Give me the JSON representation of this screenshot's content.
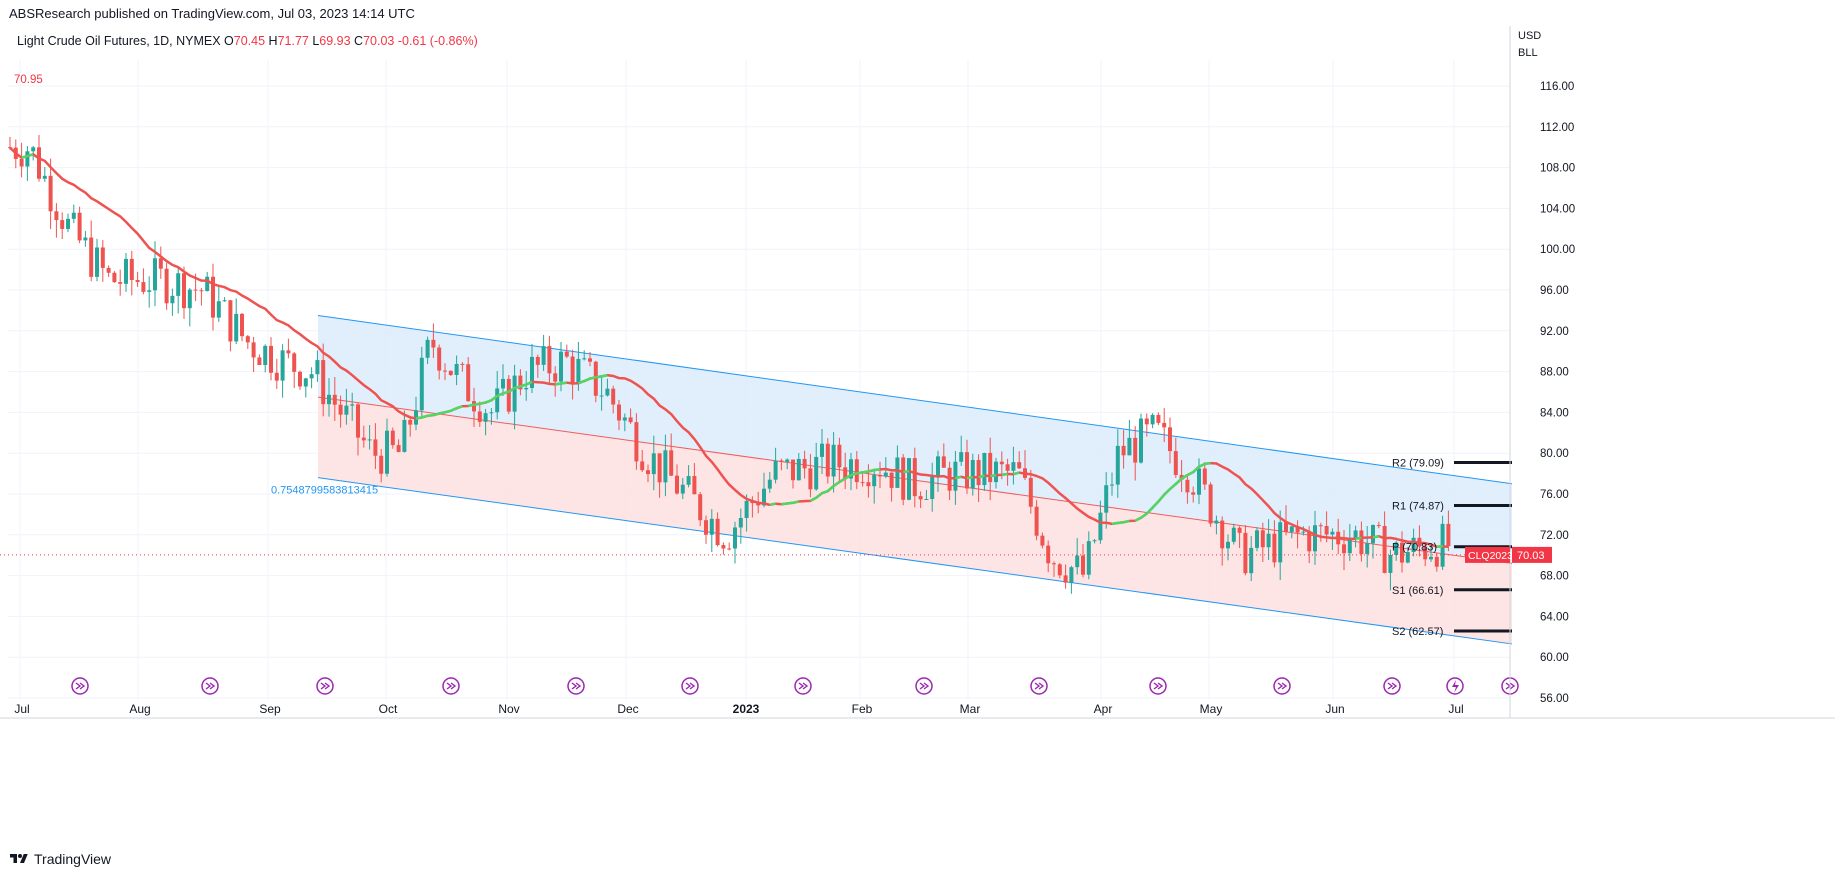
{
  "header": {
    "text": "ABSResearch published on TradingView.com, Jul 03, 2023 14:14 UTC"
  },
  "symbol": {
    "name": "Light Crude Oil Futures, 1D, NYMEX",
    "open_label": "O",
    "open": "70.45",
    "high_label": "H",
    "high": "71.77",
    "low_label": "L",
    "low": "69.93",
    "close_label": "C",
    "close": "70.03",
    "change": "-0.61 (-0.86%)"
  },
  "price_axis": {
    "currency": "USD",
    "unit": "BLL",
    "ticks": [
      "116.00",
      "112.00",
      "108.00",
      "104.00",
      "100.00",
      "96.00",
      "92.00",
      "88.00",
      "84.00",
      "80.00",
      "76.00",
      "72.00",
      "68.00",
      "64.00",
      "60.00",
      "56.00"
    ]
  },
  "time_axis": {
    "labels": [
      "Jul",
      "Aug",
      "Sep",
      "Oct",
      "Nov",
      "Dec",
      "2023",
      "Feb",
      "Mar",
      "Apr",
      "May",
      "Jun",
      "Jul"
    ]
  },
  "last_price_tag": {
    "symbol": "CLQ2023",
    "price": "70.03",
    "color": "#f23645"
  },
  "high_marker": "70.95",
  "channel_label": "0.7548799583813415",
  "pivots": [
    {
      "label": "R2 (79.09)",
      "value": 79.09
    },
    {
      "label": "R1 (74.87)",
      "value": 74.87
    },
    {
      "label": "P (70.83)",
      "value": 70.83
    },
    {
      "label": "S1 (66.61)",
      "value": 66.61
    },
    {
      "label": "S2 (62.57)",
      "value": 62.57
    }
  ],
  "colors": {
    "up": "#26a69a",
    "down": "#ef5350",
    "ma_down": "#ef5350",
    "ma_up": "#4cd964",
    "channel_line": "#2196f3",
    "upper_fill": "#dcecfc",
    "lower_fill": "#fde2e2",
    "event_icon": "#9c27b0"
  },
  "footer": {
    "brand": "TradingView"
  },
  "chart_data": {
    "type": "candlestick",
    "title": "Light Crude Oil Futures, 1D, NYMEX",
    "y_range": [
      55,
      118
    ],
    "series": [
      {
        "name": "CLQ2023",
        "type": "candlestick"
      },
      {
        "type": "line"
      }
    ],
    "close_path": [
      [
        "Jul",
        110
      ],
      [
        "Jul",
        102
      ],
      [
        "Jul",
        97
      ],
      [
        "Aug",
        97
      ],
      [
        "Aug",
        96
      ],
      [
        "Aug",
        91
      ],
      [
        "Sep",
        89
      ],
      [
        "Sep",
        88
      ],
      [
        "Sep",
        84
      ],
      [
        "Sep",
        80
      ],
      [
        "Oct",
        80
      ],
      [
        "Oct",
        91
      ],
      [
        "Oct",
        87
      ],
      [
        "Oct",
        84
      ],
      [
        "Nov",
        88
      ],
      [
        "Nov",
        89
      ],
      [
        "Nov",
        86
      ],
      [
        "Dec",
        80
      ],
      [
        "Dec",
        76
      ],
      [
        "Dec",
        72
      ],
      [
        "2023",
        78
      ],
      [
        "2023",
        79
      ],
      [
        "Feb",
        79
      ],
      [
        "Feb",
        77
      ],
      [
        "Feb",
        78
      ],
      [
        "Mar",
        78
      ],
      [
        "Mar",
        78
      ],
      [
        "Mar",
        70
      ],
      [
        "Mar",
        68
      ],
      [
        "Apr",
        80
      ],
      [
        "Apr",
        82
      ],
      [
        "Apr",
        78
      ],
      [
        "May",
        70
      ],
      [
        "May",
        72
      ],
      [
        "Jun",
        72
      ],
      [
        "Jun",
        70
      ],
      [
        "Jun",
        71
      ],
      [
        "Jul",
        70.03
      ]
    ],
    "pivot_levels": [
      79.09,
      74.87,
      70.83,
      66.61,
      62.57
    ],
    "last": 70.03,
    "grid": true
  }
}
